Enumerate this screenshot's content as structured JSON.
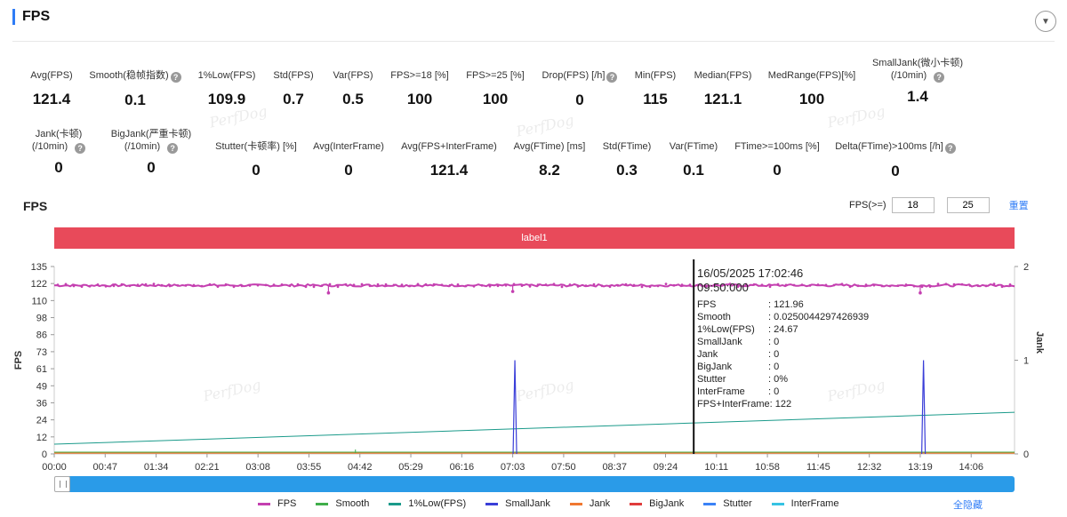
{
  "header": {
    "title": "FPS",
    "collapse_icon": "chevron-down-icon"
  },
  "stats_row1": [
    {
      "label": "Avg(FPS)",
      "value": "121.4",
      "help": false
    },
    {
      "label": "Smooth(稳帧指数)",
      "value": "0.1",
      "help": true
    },
    {
      "label": "1%Low(FPS)",
      "value": "109.9",
      "help": false
    },
    {
      "label": "Std(FPS)",
      "value": "0.7",
      "help": false
    },
    {
      "label": "Var(FPS)",
      "value": "0.5",
      "help": false
    },
    {
      "label": "FPS>=18 [%]",
      "value": "100",
      "help": false
    },
    {
      "label": "FPS>=25 [%]",
      "value": "100",
      "help": false
    },
    {
      "label": "Drop(FPS) [/h]",
      "value": "0",
      "help": true
    },
    {
      "label": "Min(FPS)",
      "value": "115",
      "help": false
    },
    {
      "label": "Median(FPS)",
      "value": "121.1",
      "help": false
    },
    {
      "label": "MedRange(FPS)[%]",
      "value": "100",
      "help": false
    },
    {
      "label": "SmallJank(微小卡顿)",
      "label2": "(/10min)",
      "value": "1.4",
      "help": true
    }
  ],
  "stats_row2": [
    {
      "label": "Jank(卡顿)",
      "label2": "(/10min)",
      "value": "0",
      "help": true
    },
    {
      "label": "BigJank(严重卡顿)",
      "label2": "(/10min)",
      "value": "0",
      "help": true
    },
    {
      "label": "Stutter(卡顿率) [%]",
      "value": "0",
      "help": false
    },
    {
      "label": "Avg(InterFrame)",
      "value": "0",
      "help": false
    },
    {
      "label": "Avg(FPS+InterFrame)",
      "value": "121.4",
      "help": false
    },
    {
      "label": "Avg(FTime) [ms]",
      "value": "8.2",
      "help": false
    },
    {
      "label": "Std(FTime)",
      "value": "0.3",
      "help": false
    },
    {
      "label": "Var(FTime)",
      "value": "0.1",
      "help": false
    },
    {
      "label": "FTime>=100ms [%]",
      "value": "0",
      "help": false
    },
    {
      "label": "Delta(FTime)>100ms [/h]",
      "value": "0",
      "help": true
    }
  ],
  "watermark": "PerfDog",
  "chart_section": {
    "title": "FPS",
    "filter_label": "FPS(>=)",
    "filter_value1": "18",
    "filter_value2": "25",
    "reset_label": "重置",
    "label_bar": "label1"
  },
  "chart_data": {
    "type": "line",
    "ylabel": "FPS",
    "y2label": "Jank",
    "y_ticks": [
      "135",
      "122",
      "110",
      "98",
      "86",
      "73",
      "61",
      "49",
      "36",
      "24",
      "12",
      "0"
    ],
    "y2_ticks": [
      "2",
      "1",
      "0"
    ],
    "x_ticks": [
      "00:00",
      "00:47",
      "01:34",
      "02:21",
      "03:08",
      "03:55",
      "04:42",
      "05:29",
      "06:16",
      "07:03",
      "07:50",
      "08:37",
      "09:24",
      "10:11",
      "10:58",
      "11:45",
      "12:32",
      "13:19",
      "14:06"
    ],
    "ylim": [
      0,
      135
    ],
    "y2lim": [
      0,
      2
    ],
    "series": [
      {
        "name": "FPS",
        "color": "#c43fb0",
        "approx_value": 121.4,
        "dips": [
          {
            "x": "04:13",
            "y": 116
          },
          {
            "x": "07:03",
            "y": 117
          },
          {
            "x": "13:19",
            "y": 116
          }
        ]
      },
      {
        "name": "Smooth",
        "color": "#3fae4a",
        "approx_value": 0.1
      },
      {
        "name": "1%Low(FPS)",
        "color": "#1a9a8a",
        "start": 7,
        "end": 30
      },
      {
        "name": "SmallJank",
        "color": "#3a3ed8",
        "spikes": [
          "07:05",
          "13:22"
        ],
        "spike_value": 1
      },
      {
        "name": "Jank",
        "color": "#f07830"
      },
      {
        "name": "BigJank",
        "color": "#e03c3c"
      },
      {
        "name": "Stutter",
        "color": "#3b82f6"
      },
      {
        "name": "InterFrame",
        "color": "#36c3e3"
      }
    ],
    "cursor_x": "09:50"
  },
  "tooltip": {
    "time": "16/05/2025 17:02:46",
    "time2": "09:50:000",
    "rows": [
      {
        "k": "FPS",
        "v": ": 121.96"
      },
      {
        "k": "Smooth",
        "v": ": 0.0250044297426939"
      },
      {
        "k": "1%Low(FPS)",
        "v": ": 24.67"
      },
      {
        "k": "SmallJank",
        "v": ": 0"
      },
      {
        "k": "Jank",
        "v": ": 0"
      },
      {
        "k": "BigJank",
        "v": ": 0"
      },
      {
        "k": "Stutter",
        "v": ": 0%"
      },
      {
        "k": "InterFrame",
        "v": ": 0"
      },
      {
        "k": "FPS+InterFrame",
        "v": ": 122"
      }
    ]
  },
  "legend": [
    {
      "name": "FPS",
      "color": "#c43fb0"
    },
    {
      "name": "Smooth",
      "color": "#3fae4a"
    },
    {
      "name": "1%Low(FPS)",
      "color": "#1a9a8a"
    },
    {
      "name": "SmallJank",
      "color": "#3a3ed8"
    },
    {
      "name": "Jank",
      "color": "#f07830"
    },
    {
      "name": "BigJank",
      "color": "#e03c3c"
    },
    {
      "name": "Stutter",
      "color": "#3b82f6"
    },
    {
      "name": "InterFrame",
      "color": "#36c3e3"
    }
  ],
  "hide_all_label": "全隐藏"
}
